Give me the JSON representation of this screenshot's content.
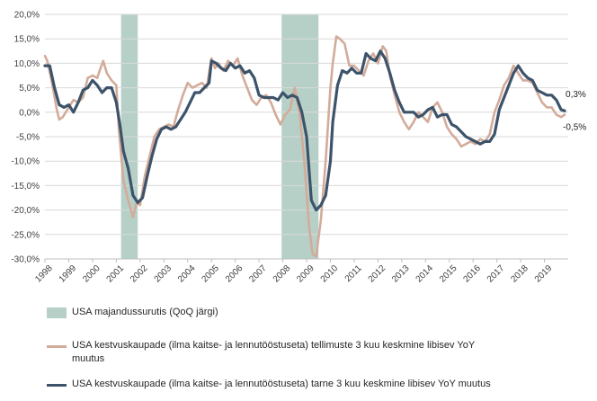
{
  "colors": {
    "recession": "#b6d0c8",
    "orders": "#d3ab9a",
    "shipments": "#3c536a",
    "grid": "#d9d9d9",
    "axis": "#bfbfbf"
  },
  "chart_data": {
    "type": "line",
    "title": "",
    "xlabel": "",
    "ylabel": "",
    "xlim": [
      1998.0,
      2020.0
    ],
    "ylim": [
      -30,
      20
    ],
    "y_ticks": [
      -30,
      -25,
      -20,
      -15,
      -10,
      -5,
      0,
      5,
      10,
      15,
      20
    ],
    "y_tick_labels": [
      "-30,0%",
      "-25,0%",
      "-20,0%",
      "-15,0%",
      "-10,0%",
      "-5,0%",
      "0,0%",
      "5,0%",
      "10,0%",
      "15,0%",
      "20,0%"
    ],
    "x_tick_labels": [
      "1998",
      "1999",
      "2000",
      "2001",
      "2002",
      "2003",
      "2004",
      "2005",
      "2006",
      "2007",
      "2008",
      "2009",
      "2010",
      "2011",
      "2012",
      "2013",
      "2014",
      "2015",
      "2016",
      "2017",
      "2018",
      "2019"
    ],
    "recessions": [
      {
        "start": 2001.2,
        "end": 2001.9
      },
      {
        "start": 2007.95,
        "end": 2009.5
      }
    ],
    "series": [
      {
        "name": "USA kestvuskaupade (ilma kaitse- ja lennutööstuseta) tellimuste 3 kuu keskmine libisev YoY muutus",
        "x": [
          1998.0,
          1998.1,
          1998.3,
          1998.5,
          1998.6,
          1998.75,
          1999.0,
          1999.2,
          1999.4,
          1999.6,
          1999.8,
          2000.0,
          2000.2,
          2000.3,
          2000.45,
          2000.6,
          2000.8,
          2001.0,
          2001.1,
          2001.3,
          2001.5,
          2001.7,
          2001.85,
          2002.0,
          2002.2,
          2002.4,
          2002.6,
          2002.8,
          2003.0,
          2003.2,
          2003.4,
          2003.6,
          2003.8,
          2004.0,
          2004.2,
          2004.4,
          2004.6,
          2004.8,
          2005.0,
          2005.15,
          2005.3,
          2005.5,
          2005.7,
          2005.9,
          2006.1,
          2006.3,
          2006.5,
          2006.7,
          2006.9,
          2007.1,
          2007.3,
          2007.5,
          2007.7,
          2007.9,
          2008.1,
          2008.3,
          2008.5,
          2008.7,
          2008.9,
          2009.1,
          2009.25,
          2009.4,
          2009.6,
          2009.8,
          2010.0,
          2010.1,
          2010.25,
          2010.4,
          2010.6,
          2010.8,
          2011.0,
          2011.2,
          2011.4,
          2011.6,
          2011.8,
          2012.0,
          2012.2,
          2012.35,
          2012.5,
          2012.7,
          2012.9,
          2013.1,
          2013.3,
          2013.5,
          2013.7,
          2013.9,
          2014.1,
          2014.3,
          2014.5,
          2014.7,
          2014.9,
          2015.1,
          2015.3,
          2015.5,
          2015.7,
          2015.9,
          2016.1,
          2016.3,
          2016.5,
          2016.7,
          2016.9,
          2017.1,
          2017.3,
          2017.5,
          2017.7,
          2017.9,
          2018.1,
          2018.3,
          2018.5,
          2018.7,
          2018.9,
          2019.1,
          2019.3,
          2019.5,
          2019.7,
          2019.85
        ],
        "values": [
          11.5,
          10.5,
          6.0,
          0.5,
          -1.5,
          -1.0,
          1.0,
          2.5,
          2.0,
          3.0,
          7.0,
          7.5,
          7.0,
          8.5,
          10.5,
          8.0,
          6.5,
          5.5,
          -3.0,
          -14.0,
          -18.0,
          -21.5,
          -18.5,
          -19.0,
          -13.0,
          -9.0,
          -5.0,
          -3.5,
          -3.0,
          -2.5,
          -3.0,
          0.5,
          3.5,
          6.0,
          5.0,
          5.5,
          6.0,
          5.0,
          11.0,
          9.0,
          10.0,
          8.5,
          10.5,
          9.5,
          11.0,
          7.5,
          5.0,
          2.5,
          1.5,
          3.0,
          3.5,
          2.0,
          -0.5,
          -2.5,
          -0.5,
          0.5,
          5.0,
          0.0,
          -10.0,
          -23.0,
          -29.0,
          -29.5,
          -22.0,
          -10.0,
          5.0,
          10.0,
          15.5,
          15.0,
          14.0,
          9.5,
          9.5,
          8.5,
          7.5,
          10.5,
          12.0,
          10.0,
          13.5,
          12.5,
          7.5,
          3.5,
          0.0,
          -2.0,
          -3.5,
          -2.0,
          0.0,
          -1.0,
          -2.0,
          1.0,
          2.0,
          0.0,
          -3.0,
          -4.5,
          -5.5,
          -7.0,
          -6.5,
          -6.0,
          -6.5,
          -5.5,
          -6.0,
          -4.5,
          0.0,
          2.5,
          5.5,
          7.0,
          9.5,
          8.0,
          6.5,
          6.5,
          6.0,
          4.0,
          2.0,
          1.0,
          1.0,
          -0.5,
          -1.0,
          -0.5
        ]
      },
      {
        "name": "USA kestvuskaupade (ilma kaitse- ja lennutööstuseta) tarne 3 kuu keskmine libisev YoY muutus",
        "x": [
          1998.0,
          1998.2,
          1998.4,
          1998.6,
          1998.8,
          1999.0,
          1999.2,
          1999.4,
          1999.6,
          1999.8,
          2000.0,
          2000.2,
          2000.4,
          2000.6,
          2000.8,
          2001.0,
          2001.15,
          2001.3,
          2001.5,
          2001.7,
          2001.9,
          2002.1,
          2002.3,
          2002.5,
          2002.7,
          2002.9,
          2003.1,
          2003.3,
          2003.5,
          2003.7,
          2003.9,
          2004.1,
          2004.3,
          2004.5,
          2004.7,
          2004.9,
          2005.0,
          2005.2,
          2005.4,
          2005.6,
          2005.8,
          2006.0,
          2006.2,
          2006.4,
          2006.6,
          2006.8,
          2007.0,
          2007.2,
          2007.4,
          2007.6,
          2007.8,
          2008.0,
          2008.2,
          2008.4,
          2008.6,
          2008.8,
          2009.0,
          2009.2,
          2009.4,
          2009.6,
          2009.8,
          2010.0,
          2010.1,
          2010.3,
          2010.5,
          2010.7,
          2010.9,
          2011.1,
          2011.3,
          2011.5,
          2011.7,
          2011.9,
          2012.1,
          2012.3,
          2012.5,
          2012.7,
          2012.9,
          2013.1,
          2013.3,
          2013.5,
          2013.7,
          2013.9,
          2014.1,
          2014.3,
          2014.5,
          2014.7,
          2014.9,
          2015.1,
          2015.3,
          2015.5,
          2015.7,
          2015.9,
          2016.1,
          2016.3,
          2016.5,
          2016.7,
          2016.9,
          2017.1,
          2017.3,
          2017.5,
          2017.7,
          2017.9,
          2018.1,
          2018.3,
          2018.5,
          2018.7,
          2018.9,
          2019.1,
          2019.3,
          2019.5,
          2019.7,
          2019.85
        ],
        "values": [
          9.5,
          9.5,
          5.0,
          1.5,
          1.0,
          1.5,
          0.0,
          2.0,
          4.5,
          5.0,
          6.5,
          5.5,
          4.0,
          5.0,
          5.0,
          2.0,
          -2.5,
          -8.0,
          -11.5,
          -17.0,
          -18.5,
          -17.5,
          -13.0,
          -9.0,
          -5.5,
          -3.5,
          -3.0,
          -3.5,
          -3.0,
          -1.5,
          0.0,
          2.0,
          4.0,
          4.0,
          5.0,
          6.0,
          10.5,
          10.0,
          9.0,
          8.5,
          10.0,
          9.0,
          9.5,
          8.0,
          8.5,
          7.0,
          3.5,
          3.0,
          3.0,
          3.0,
          2.5,
          4.0,
          3.0,
          3.5,
          3.0,
          0.0,
          -5.0,
          -18.0,
          -20.0,
          -19.0,
          -17.0,
          -10.0,
          -2.0,
          5.5,
          8.5,
          8.0,
          9.0,
          8.0,
          8.0,
          12.0,
          11.0,
          10.5,
          12.5,
          11.0,
          8.0,
          4.5,
          2.0,
          0.0,
          0.0,
          0.0,
          -1.0,
          -0.5,
          0.5,
          1.0,
          -1.0,
          -0.5,
          -0.5,
          -2.5,
          -3.0,
          -4.0,
          -5.0,
          -5.5,
          -6.0,
          -6.5,
          -6.0,
          -6.0,
          -4.5,
          0.5,
          3.0,
          5.5,
          8.0,
          9.5,
          8.0,
          7.0,
          6.5,
          4.5,
          4.0,
          3.5,
          3.5,
          2.5,
          0.5,
          0.3
        ]
      }
    ],
    "end_labels": {
      "orders": "-0,5%",
      "shipments": "0,3%"
    },
    "legend": {
      "recession": "USA majandussurutis (QoQ järgi)",
      "orders_line1": "USA kestvuskaupade (ilma kaitse- ja lennutööstuseta) tellimuste 3 kuu keskmine libisev YoY",
      "orders_line2": "muutus",
      "shipments": "USA kestvuskaupade (ilma kaitse- ja lennutööstuseta) tarne 3 kuu keskmine libisev YoY muutus"
    }
  }
}
